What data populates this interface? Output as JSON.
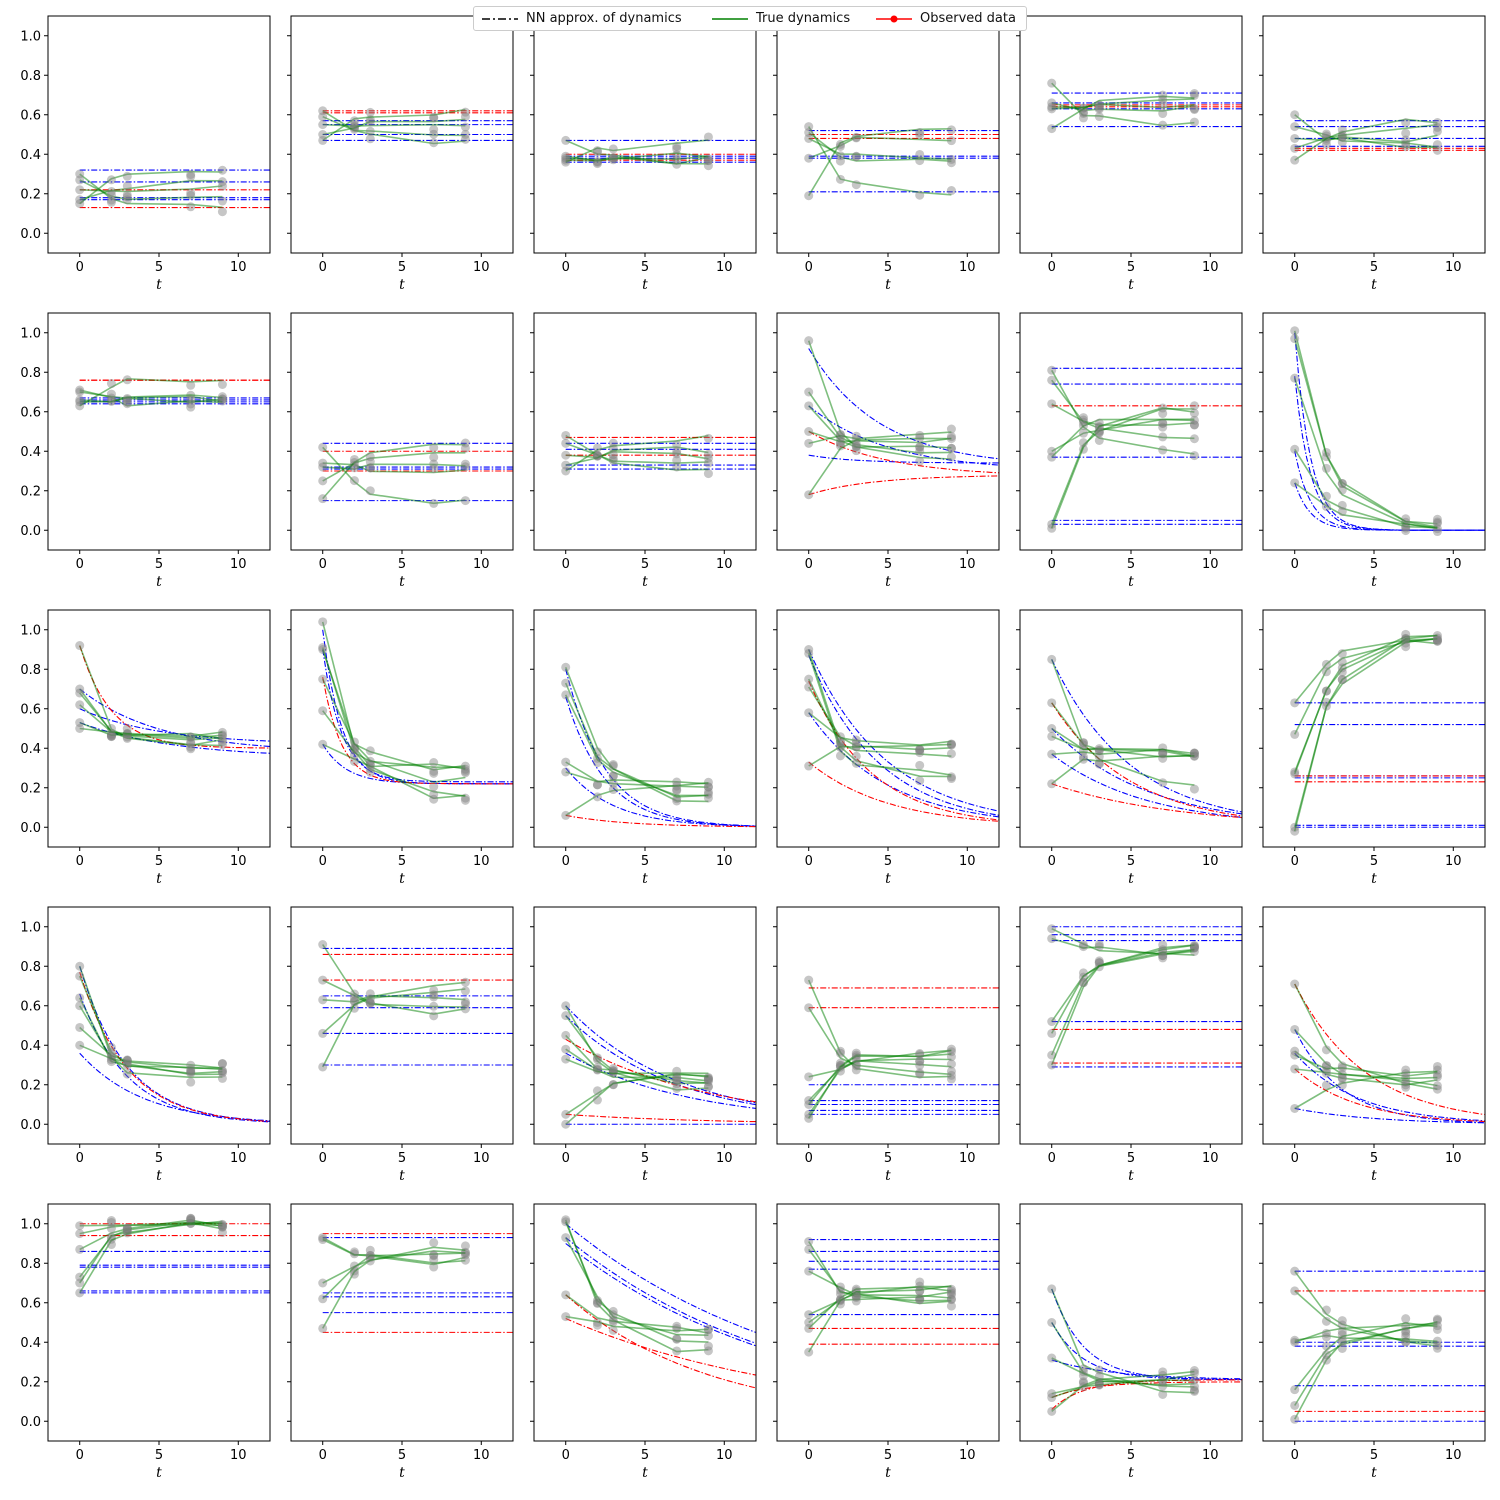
{
  "legend": {
    "nn": "NN approx. of dynamics",
    "true": "True dynamics",
    "obs": "Observed data"
  },
  "colors": {
    "nn_legend": "#000000",
    "nn_fit": "#0000ff",
    "nn_miss": "#ff0000",
    "true": "#008000",
    "observed": "#808080",
    "legend_observed": "#ff0000"
  },
  "chart_data": {
    "type": "line",
    "rows": 5,
    "cols": 6,
    "xlabel": "t",
    "xlim": [
      -2,
      12
    ],
    "ylim": [
      -0.1,
      1.1
    ],
    "xticks": [
      0,
      5,
      10
    ],
    "yticks": [
      0.0,
      0.2,
      0.4,
      0.6,
      0.8,
      1.0
    ],
    "ytick_labels": [
      "0.0",
      "0.2",
      "0.4",
      "0.6",
      "0.8",
      "1.0"
    ],
    "observation_times": [
      0,
      2,
      3,
      7,
      9
    ],
    "panels": [
      {
        "true_end": [
          0.13,
          0.17,
          0.22,
          0.25,
          0.31
        ],
        "nn_decay": [],
        "nn_flat": [
          0.32,
          0.26,
          0.18,
          0.17
        ],
        "nn_flat_red": [
          0.22,
          0.13
        ],
        "obs_start": [
          0.3,
          0.27,
          0.22,
          0.17,
          0.15
        ]
      },
      {
        "true_end": [
          0.47,
          0.5,
          0.55,
          0.57,
          0.62
        ],
        "nn_decay": [],
        "nn_flat": [
          0.57,
          0.55,
          0.5,
          0.47
        ],
        "nn_flat_red": [
          0.62,
          0.61
        ],
        "obs_start": [
          0.62,
          0.59,
          0.55,
          0.5,
          0.47
        ]
      },
      {
        "true_end": [
          0.36,
          0.37,
          0.38,
          0.39,
          0.46
        ],
        "nn_decay": [],
        "nn_flat": [
          0.47,
          0.39,
          0.38,
          0.36
        ],
        "nn_flat_red": [
          0.4,
          0.37
        ],
        "obs_start": [
          0.47,
          0.39,
          0.38,
          0.37,
          0.36
        ]
      },
      {
        "true_end": [
          0.21,
          0.37,
          0.39,
          0.48,
          0.51
        ],
        "nn_decay": [],
        "nn_flat": [
          0.52,
          0.39,
          0.38,
          0.21
        ],
        "nn_flat_red": [
          0.5,
          0.48
        ],
        "obs_start": [
          0.54,
          0.51,
          0.48,
          0.38,
          0.19
        ]
      },
      {
        "true_end": [
          0.54,
          0.63,
          0.65,
          0.66,
          0.7
        ],
        "nn_decay": [],
        "nn_flat": [
          0.71,
          0.66,
          0.63,
          0.54
        ],
        "nn_flat_red": [
          0.65,
          0.64
        ],
        "obs_start": [
          0.76,
          0.66,
          0.64,
          0.63,
          0.53
        ]
      },
      {
        "true_end": [
          0.42,
          0.44,
          0.48,
          0.54,
          0.57
        ],
        "nn_decay": [],
        "nn_flat": [
          0.57,
          0.54,
          0.48,
          0.44
        ],
        "nn_flat_red": [
          0.43,
          0.42
        ],
        "obs_start": [
          0.6,
          0.54,
          0.48,
          0.43,
          0.37
        ]
      },
      {
        "true_end": [
          0.64,
          0.65,
          0.66,
          0.67,
          0.76
        ],
        "nn_decay": [],
        "nn_flat": [
          0.67,
          0.66,
          0.65,
          0.64
        ],
        "nn_flat_red": [
          0.76,
          0.76
        ],
        "obs_start": [
          0.71,
          0.7,
          0.66,
          0.65,
          0.63
        ]
      },
      {
        "true_end": [
          0.15,
          0.31,
          0.32,
          0.4,
          0.43
        ],
        "nn_decay": [],
        "nn_flat": [
          0.44,
          0.32,
          0.31,
          0.15
        ],
        "nn_flat_red": [
          0.4,
          0.3
        ],
        "obs_start": [
          0.42,
          0.34,
          0.32,
          0.25,
          0.16
        ]
      },
      {
        "true_end": [
          0.31,
          0.33,
          0.38,
          0.41,
          0.47
        ],
        "nn_decay": [],
        "nn_flat": [
          0.44,
          0.41,
          0.33,
          0.31
        ],
        "nn_flat_red": [
          0.47,
          0.38
        ],
        "obs_start": [
          0.48,
          0.44,
          0.38,
          0.33,
          0.3
        ]
      },
      {
        "true_end": [
          0.37,
          0.4,
          0.42,
          0.45,
          0.48
        ],
        "nn_decay": [
          {
            "start": 0.92,
            "end": 0.32,
            "tau": 4.5
          },
          {
            "start": 0.63,
            "end": 0.3,
            "tau": 5.0
          },
          {
            "start": 0.38,
            "end": 0.34,
            "tau": 3.0
          }
        ],
        "nn_decay_red": [
          {
            "start": 0.5,
            "end": 0.27,
            "tau": 5.0
          },
          {
            "start": 0.18,
            "end": 0.28,
            "tau": 4.0
          }
        ],
        "nn_flat": [],
        "nn_flat_red": [],
        "obs_start": [
          0.96,
          0.7,
          0.63,
          0.5,
          0.44,
          0.18
        ]
      },
      {
        "true_end": [
          0.4,
          0.45,
          0.53,
          0.55,
          0.58,
          0.61
        ],
        "nn_decay": [],
        "nn_flat": [
          0.82,
          0.74,
          0.37,
          0.05,
          0.03
        ],
        "nn_flat_red": [
          0.63
        ],
        "obs_start": [
          0.81,
          0.76,
          0.64,
          0.4,
          0.37,
          0.03,
          0.01
        ]
      },
      {
        "true_end": [
          0.0,
          0.01,
          0.01,
          0.01,
          0.02
        ],
        "nn_decay": [
          {
            "start": 1.0,
            "end": 0.0,
            "tau": 1.0
          },
          {
            "start": 0.78,
            "end": 0.0,
            "tau": 1.0
          },
          {
            "start": 0.4,
            "end": 0.0,
            "tau": 1.0
          },
          {
            "start": 0.24,
            "end": 0.0,
            "tau": 1.0
          }
        ],
        "nn_decay_red": [],
        "nn_flat": [],
        "nn_flat_red": [],
        "obs_start": [
          1.01,
          0.97,
          0.77,
          0.41,
          0.24
        ]
      },
      {
        "true_end": [
          0.4,
          0.43,
          0.45,
          0.46,
          0.47
        ],
        "nn_decay": [
          {
            "start": 0.7,
            "end": 0.38,
            "tau": 5.0
          },
          {
            "start": 0.53,
            "end": 0.35,
            "tau": 6.0
          },
          {
            "start": 0.6,
            "end": 0.42,
            "tau": 5.0
          }
        ],
        "nn_decay_red": [
          {
            "start": 0.92,
            "end": 0.4,
            "tau": 2.0
          }
        ],
        "nn_flat": [],
        "nn_flat_red": [],
        "obs_start": [
          0.92,
          0.7,
          0.68,
          0.62,
          0.53,
          0.5
        ]
      },
      {
        "true_end": [
          0.15,
          0.16,
          0.23,
          0.29,
          0.3
        ],
        "nn_decay": [
          {
            "start": 1.0,
            "end": 0.22,
            "tau": 1.2
          },
          {
            "start": 0.9,
            "end": 0.23,
            "tau": 1.2
          },
          {
            "start": 0.42,
            "end": 0.22,
            "tau": 1.5
          }
        ],
        "nn_decay_red": [
          {
            "start": 0.76,
            "end": 0.22,
            "tau": 1.2
          }
        ],
        "nn_flat": [],
        "nn_flat_red": [],
        "obs_start": [
          1.04,
          0.91,
          0.9,
          0.75,
          0.59,
          0.42
        ]
      },
      {
        "true_end": [
          0.12,
          0.14,
          0.16,
          0.19,
          0.21
        ],
        "nn_decay": [
          {
            "start": 0.8,
            "end": 0.0,
            "tau": 2.5
          },
          {
            "start": 0.66,
            "end": 0.0,
            "tau": 2.5
          },
          {
            "start": 0.3,
            "end": 0.0,
            "tau": 3.0
          }
        ],
        "nn_decay_red": [
          {
            "start": 0.06,
            "end": 0.0,
            "tau": 4.0
          }
        ],
        "nn_flat": [],
        "nn_flat_red": [],
        "obs_start": [
          0.81,
          0.73,
          0.67,
          0.33,
          0.28,
          0.06
        ]
      },
      {
        "true_end": [
          0.26,
          0.27,
          0.35,
          0.4,
          0.42
        ],
        "nn_decay": [
          {
            "start": 0.9,
            "end": 0.0,
            "tau": 5.0
          },
          {
            "start": 0.87,
            "end": 0.0,
            "tau": 4.5
          },
          {
            "start": 0.58,
            "end": 0.0,
            "tau": 5.0
          }
        ],
        "nn_decay_red": [
          {
            "start": 0.74,
            "end": 0.0,
            "tau": 4.0
          },
          {
            "start": 0.33,
            "end": 0.0,
            "tau": 5.0
          }
        ],
        "nn_flat": [],
        "nn_flat_red": [],
        "obs_start": [
          0.9,
          0.88,
          0.75,
          0.71,
          0.58,
          0.31
        ]
      },
      {
        "true_end": [
          0.22,
          0.35,
          0.37,
          0.38
        ],
        "nn_decay": [
          {
            "start": 0.85,
            "end": 0.0,
            "tau": 5.0
          },
          {
            "start": 0.5,
            "end": 0.0,
            "tau": 6.0
          },
          {
            "start": 0.37,
            "end": 0.0,
            "tau": 6.0
          }
        ],
        "nn_decay_red": [
          {
            "start": 0.63,
            "end": 0.0,
            "tau": 5.0
          },
          {
            "start": 0.22,
            "end": 0.0,
            "tau": 8.0
          }
        ],
        "nn_flat": [],
        "nn_flat_red": [],
        "obs_start": [
          0.85,
          0.63,
          0.5,
          0.46,
          0.37,
          0.22
        ]
      },
      {
        "true_end": [
          0.95,
          0.97,
          0.98,
          0.98
        ],
        "nn_decay": [],
        "nn_flat": [
          0.63,
          0.52,
          0.26,
          0.25,
          0.01,
          0.0
        ],
        "nn_flat_red": [
          0.26,
          0.23
        ],
        "obs_start": [
          0.63,
          0.47,
          0.28,
          0.27,
          0.0,
          -0.02
        ]
      },
      {
        "true_end": [
          0.22,
          0.24,
          0.25,
          0.27,
          0.29
        ],
        "nn_decay": [
          {
            "start": 0.8,
            "end": 0.0,
            "tau": 3.0
          },
          {
            "start": 0.66,
            "end": 0.0,
            "tau": 3.0
          },
          {
            "start": 0.36,
            "end": 0.0,
            "tau": 4.0
          }
        ],
        "nn_decay_red": [
          {
            "start": 0.77,
            "end": 0.0,
            "tau": 3.0
          }
        ],
        "nn_flat": [],
        "nn_flat_red": [],
        "obs_start": [
          0.8,
          0.75,
          0.64,
          0.6,
          0.49,
          0.4
        ]
      },
      {
        "true_end": [
          0.57,
          0.6,
          0.64,
          0.68,
          0.72
        ],
        "nn_decay": [],
        "nn_flat": [
          0.89,
          0.65,
          0.59,
          0.46,
          0.3
        ],
        "nn_flat_red": [
          0.86,
          0.73
        ],
        "obs_start": [
          0.91,
          0.73,
          0.63,
          0.46,
          0.29
        ]
      },
      {
        "true_end": [
          0.17,
          0.19,
          0.2,
          0.22,
          0.25
        ],
        "nn_decay": [
          {
            "start": 0.6,
            "end": 0.0,
            "tau": 7.0
          },
          {
            "start": 0.55,
            "end": 0.0,
            "tau": 7.0
          },
          {
            "start": 0.36,
            "end": 0.0,
            "tau": 8.0
          }
        ],
        "nn_decay_red": [
          {
            "start": 0.43,
            "end": 0.0,
            "tau": 9.0
          },
          {
            "start": 0.05,
            "end": 0.0,
            "tau": 9.0
          }
        ],
        "nn_flat": [
          0.0
        ],
        "nn_flat_red": [],
        "obs_start": [
          0.6,
          0.55,
          0.45,
          0.38,
          0.33,
          0.05,
          0.0
        ]
      },
      {
        "true_end": [
          0.24,
          0.26,
          0.31,
          0.34,
          0.36
        ],
        "nn_decay": [],
        "nn_flat": [
          0.2,
          0.12,
          0.1,
          0.07,
          0.05
        ],
        "nn_flat_red": [
          0.69,
          0.59
        ],
        "obs_start": [
          0.73,
          0.59,
          0.24,
          0.12,
          0.1,
          0.05,
          0.03
        ]
      },
      {
        "true_end": [
          0.86,
          0.87,
          0.88,
          0.89
        ],
        "nn_decay": [],
        "nn_flat": [
          1.0,
          0.96,
          0.93,
          0.52,
          0.29
        ],
        "nn_flat_red": [
          0.48,
          0.31
        ],
        "obs_start": [
          0.99,
          0.94,
          0.52,
          0.46,
          0.35,
          0.3
        ]
      },
      {
        "true_end": [
          0.18,
          0.2,
          0.21,
          0.25
        ],
        "nn_decay": [
          {
            "start": 0.48,
            "end": 0.0,
            "tau": 3.0
          },
          {
            "start": 0.36,
            "end": 0.0,
            "tau": 4.0
          },
          {
            "start": 0.08,
            "end": 0.0,
            "tau": 5.0
          }
        ],
        "nn_decay_red": [
          {
            "start": 0.71,
            "end": 0.0,
            "tau": 4.5
          },
          {
            "start": 0.28,
            "end": 0.0,
            "tau": 4.0
          }
        ],
        "nn_flat": [],
        "nn_flat_red": [],
        "obs_start": [
          0.71,
          0.48,
          0.37,
          0.35,
          0.28,
          0.08
        ]
      },
      {
        "true_end": [
          0.99,
          1.0,
          1.0
        ],
        "nn_decay": [],
        "nn_flat": [
          0.86,
          0.79,
          0.78,
          0.66,
          0.65
        ],
        "nn_flat_red": [
          1.0,
          0.94
        ],
        "obs_start": [
          0.99,
          0.95,
          0.87,
          0.73,
          0.7,
          0.65
        ]
      },
      {
        "true_end": [
          0.81,
          0.82,
          0.85,
          0.86,
          0.87
        ],
        "nn_decay": [],
        "nn_flat": [
          0.93,
          0.65,
          0.63,
          0.55
        ],
        "nn_flat_red": [
          0.95,
          0.45
        ],
        "obs_start": [
          0.93,
          0.92,
          0.7,
          0.62,
          0.47
        ]
      },
      {
        "true_end": [
          0.34,
          0.38,
          0.41,
          0.46
        ],
        "nn_decay": [
          {
            "start": 1.0,
            "end": 0.0,
            "tau": 15.0
          },
          {
            "start": 0.93,
            "end": 0.0,
            "tau": 14.0
          },
          {
            "start": 0.9,
            "end": 0.0,
            "tau": 14.0
          }
        ],
        "nn_decay_red": [
          {
            "start": 0.64,
            "end": 0.0,
            "tau": 9.0
          },
          {
            "start": 0.52,
            "end": 0.0,
            "tau": 15.0
          }
        ],
        "nn_flat": [],
        "nn_flat_red": [],
        "obs_start": [
          1.02,
          1.01,
          0.93,
          0.64,
          0.53
        ]
      },
      {
        "true_end": [
          0.6,
          0.62,
          0.63,
          0.64,
          0.67
        ],
        "nn_decay": [],
        "nn_flat": [
          0.92,
          0.86,
          0.81,
          0.77,
          0.54
        ],
        "nn_flat_red": [
          0.47,
          0.39
        ],
        "obs_start": [
          0.91,
          0.87,
          0.76,
          0.54,
          0.5,
          0.47,
          0.35
        ]
      },
      {
        "true_end": [
          0.14,
          0.16,
          0.18,
          0.2,
          0.22,
          0.24
        ],
        "nn_decay": [
          {
            "start": 0.67,
            "end": 0.21,
            "tau": 2.0
          },
          {
            "start": 0.5,
            "end": 0.21,
            "tau": 2.0
          },
          {
            "start": 0.31,
            "end": 0.21,
            "tau": 4.0
          }
        ],
        "nn_decay_red": [
          {
            "start": 0.06,
            "end": 0.21,
            "tau": 2.0
          },
          {
            "start": 0.12,
            "end": 0.2,
            "tau": 2.5
          }
        ],
        "nn_flat": [],
        "nn_flat_red": [],
        "obs_start": [
          0.67,
          0.5,
          0.32,
          0.14,
          0.12,
          0.05
        ]
      },
      {
        "true_end": [
          0.38,
          0.4,
          0.42,
          0.5
        ],
        "nn_decay": [],
        "nn_flat": [
          0.76,
          0.4,
          0.38,
          0.18,
          0.0
        ],
        "nn_flat_red": [
          0.66,
          0.05
        ],
        "obs_start": [
          0.76,
          0.66,
          0.41,
          0.4,
          0.16,
          0.08,
          0.01
        ]
      }
    ]
  }
}
